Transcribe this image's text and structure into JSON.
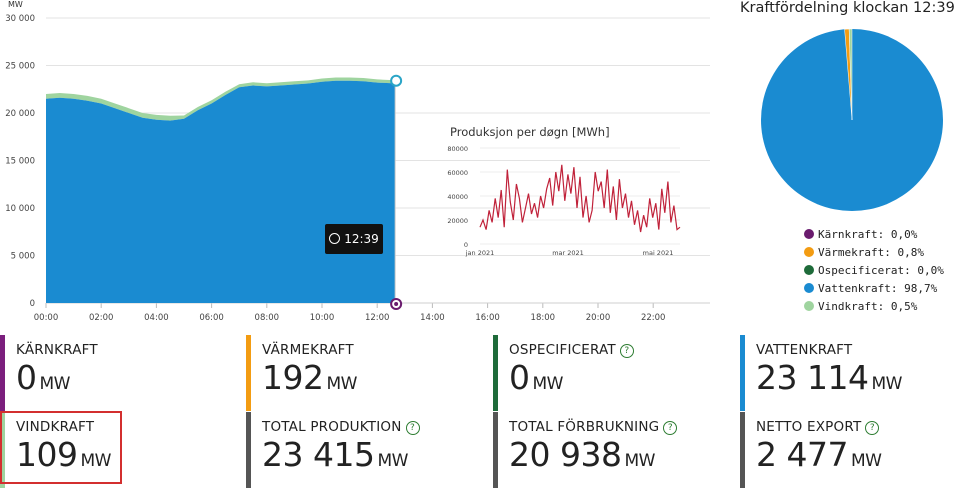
{
  "main_chart": {
    "unit_label": "MW",
    "y_ticks": [
      "30 000",
      "25 000",
      "20 000",
      "15 000",
      "10 000",
      "5 000",
      "0"
    ],
    "x_ticks": [
      "00:00",
      "02:00",
      "04:00",
      "06:00",
      "08:00",
      "10:00",
      "12:00",
      "14:00",
      "16:00",
      "18:00",
      "20:00",
      "22:00"
    ],
    "tooltip_time": "12:39",
    "colors": {
      "vattenkraft": "#1a8bd1",
      "vindkraft": "#9fd49f",
      "karnkraft": "#7b1f7d"
    }
  },
  "inset_chart": {
    "title": "Produksjon per døgn [MWh]",
    "y_ticks": [
      "80000",
      "60000",
      "40000",
      "20000",
      "0"
    ],
    "x_ticks": [
      "jan 2021",
      "mar 2021",
      "mai 2021"
    ],
    "line_color": "#c0223a"
  },
  "pie": {
    "title": "Kraftfördelning klockan 12:39",
    "legend": [
      {
        "label": "Kärnkraft: 0,0%",
        "color": "#6a1b6e"
      },
      {
        "label": "Värmekraft: 0,8%",
        "color": "#f39c12"
      },
      {
        "label": "Ospecificerat: 0,0%",
        "color": "#1e6b3a"
      },
      {
        "label": "Vattenkraft: 98,7%",
        "color": "#1a8bd1"
      },
      {
        "label": "Vindkraft: 0,5%",
        "color": "#9fd49f"
      }
    ]
  },
  "tiles": {
    "karnkraft": {
      "label": "KÄRNKRAFT",
      "value": "0",
      "unit": "MW",
      "color": "#7b1f7d"
    },
    "varmekraft": {
      "label": "VÄRMEKRAFT",
      "value": "192",
      "unit": "MW",
      "color": "#f39c12"
    },
    "ospecificerat": {
      "label": "OSPECIFICERAT",
      "value": "0",
      "unit": "MW",
      "color": "#1e6b3a",
      "help": "?"
    },
    "vattenkraft": {
      "label": "VATTENKRAFT",
      "value": "23 114",
      "unit": "MW",
      "color": "#1a8bd1"
    },
    "vindkraft": {
      "label": "VINDKRAFT",
      "value": "109",
      "unit": "MW",
      "color": "#9fd49f"
    },
    "total_produktion": {
      "label": "TOTAL PRODUKTION",
      "value": "23 415",
      "unit": "MW",
      "color": "#555555",
      "help": "?"
    },
    "total_forbrukning": {
      "label": "TOTAL FÖRBRUKNING",
      "value": "20 938",
      "unit": "MW",
      "color": "#555555",
      "help": "?"
    },
    "netto_export": {
      "label": "NETTO EXPORT",
      "value": "2 477",
      "unit": "MW",
      "color": "#555555",
      "help": "?"
    }
  }
}
